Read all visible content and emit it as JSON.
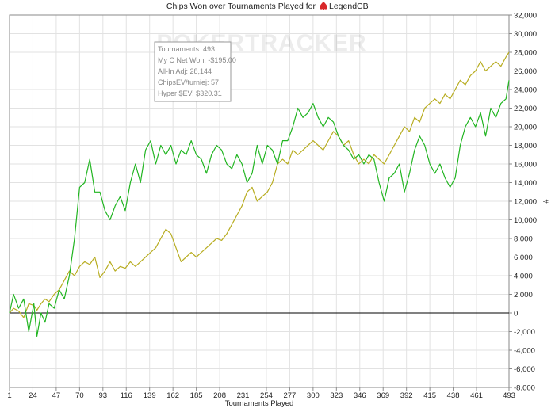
{
  "title_prefix": "Chips Won over Tournaments Played for",
  "title_player": "LegendCB",
  "watermark": "POKERTRACKER",
  "colors": {
    "green": "#21b521",
    "olive": "#b8ad22",
    "grid": "#e2e2e2",
    "frame": "#8a8a8a",
    "zero": "#000000",
    "logo": "#d8282a"
  },
  "tooltip": {
    "lines": [
      "Tournaments: 493",
      "My C Net Won: -$195.00",
      "All-In Adj: 28,144",
      "ChipsEV/turniej: 57",
      "Hyper $EV: $320.31"
    ]
  },
  "chart_data": {
    "type": "line",
    "xlabel": "Tournaments Played",
    "ylabel": "#",
    "xlim": [
      1,
      493
    ],
    "ylim": [
      -8000,
      32000
    ],
    "x_ticks": [
      1,
      24,
      47,
      70,
      93,
      116,
      139,
      162,
      185,
      208,
      231,
      254,
      277,
      300,
      323,
      346,
      369,
      392,
      415,
      438,
      461,
      493
    ],
    "y_ticks": [
      -8000,
      -6000,
      -4000,
      -2000,
      0,
      2000,
      4000,
      6000,
      8000,
      10000,
      12000,
      14000,
      16000,
      18000,
      20000,
      22000,
      24000,
      26000,
      28000,
      30000,
      32000
    ],
    "y_tick_labels": [
      "-8,000",
      "-6,000",
      "-4,000",
      "-2,000",
      "0",
      "2,000",
      "4,000",
      "6,000",
      "8,000",
      "10,000",
      "12,000",
      "14,000",
      "16,000",
      "18,000",
      "20,000",
      "22,000",
      "24,000",
      "26,000",
      "28,000",
      "30,000",
      "32,000"
    ],
    "grid": true,
    "series": [
      {
        "color": "#21b521",
        "x": [
          1,
          5,
          10,
          15,
          20,
          25,
          28,
          32,
          36,
          40,
          45,
          50,
          55,
          60,
          65,
          70,
          75,
          80,
          85,
          90,
          95,
          100,
          105,
          110,
          115,
          120,
          125,
          130,
          135,
          140,
          145,
          150,
          155,
          160,
          165,
          170,
          175,
          180,
          185,
          190,
          195,
          200,
          205,
          210,
          215,
          220,
          225,
          230,
          235,
          240,
          245,
          250,
          255,
          260,
          265,
          270,
          275,
          280,
          285,
          290,
          295,
          300,
          305,
          310,
          315,
          320,
          325,
          330,
          335,
          340,
          345,
          350,
          355,
          360,
          365,
          370,
          375,
          380,
          385,
          390,
          395,
          400,
          405,
          410,
          415,
          420,
          425,
          430,
          435,
          440,
          445,
          450,
          455,
          460,
          465,
          470,
          475,
          480,
          485,
          490,
          493
        ],
        "y": [
          0,
          2000,
          500,
          1500,
          -2000,
          1000,
          -2500,
          0,
          -1000,
          1000,
          500,
          2500,
          1500,
          4000,
          8000,
          13500,
          14000,
          16500,
          13000,
          13000,
          11000,
          10000,
          11500,
          12500,
          11000,
          14000,
          16000,
          14000,
          17500,
          18500,
          16000,
          18000,
          17000,
          18000,
          16000,
          17500,
          17000,
          18500,
          17000,
          16500,
          15000,
          17000,
          18000,
          17500,
          16000,
          15500,
          17000,
          16000,
          14000,
          15000,
          18000,
          16000,
          18000,
          17500,
          16000,
          18500,
          18500,
          20000,
          22000,
          21000,
          21500,
          22500,
          21000,
          20000,
          21000,
          20500,
          19000,
          18000,
          17500,
          16500,
          17000,
          16000,
          17000,
          16500,
          14000,
          12000,
          14500,
          15000,
          16000,
          13000,
          15000,
          17500,
          19000,
          18000,
          16000,
          15000,
          16000,
          14500,
          13500,
          14500,
          18000,
          20000,
          21000,
          20000,
          21500,
          19000,
          22000,
          21000,
          22500,
          23000,
          25000
        ]
      },
      {
        "color": "#b8ad22",
        "x": [
          1,
          5,
          10,
          15,
          20,
          25,
          28,
          32,
          36,
          40,
          45,
          50,
          55,
          60,
          65,
          70,
          75,
          80,
          85,
          90,
          95,
          100,
          105,
          110,
          115,
          120,
          125,
          130,
          135,
          140,
          145,
          150,
          155,
          160,
          165,
          170,
          175,
          180,
          185,
          190,
          195,
          200,
          205,
          210,
          215,
          220,
          225,
          230,
          235,
          240,
          245,
          250,
          255,
          260,
          265,
          270,
          275,
          280,
          285,
          290,
          295,
          300,
          305,
          310,
          315,
          320,
          325,
          330,
          335,
          340,
          345,
          350,
          355,
          360,
          365,
          370,
          375,
          380,
          385,
          390,
          395,
          400,
          405,
          410,
          415,
          420,
          425,
          430,
          435,
          440,
          445,
          450,
          455,
          460,
          465,
          470,
          475,
          480,
          485,
          490,
          493
        ],
        "y": [
          0,
          500,
          200,
          -500,
          1000,
          800,
          300,
          1000,
          1500,
          1200,
          2000,
          2500,
          3500,
          4500,
          4000,
          5000,
          5500,
          5200,
          6000,
          3800,
          4500,
          5500,
          4500,
          5000,
          4800,
          5500,
          5000,
          5500,
          6000,
          6500,
          7000,
          8000,
          9000,
          8500,
          7000,
          5500,
          6000,
          6500,
          6000,
          6500,
          7000,
          7500,
          8000,
          7800,
          8500,
          9500,
          10500,
          11500,
          13000,
          13500,
          12000,
          12500,
          13000,
          14000,
          16000,
          16500,
          16000,
          17500,
          17000,
          17500,
          18000,
          18500,
          18000,
          17500,
          18500,
          19500,
          19000,
          18000,
          18500,
          17000,
          16000,
          16500,
          16000,
          17000,
          16500,
          16000,
          17000,
          18000,
          19000,
          20000,
          19500,
          21000,
          20500,
          22000,
          22500,
          23000,
          22500,
          23500,
          23000,
          24000,
          25000,
          24500,
          25500,
          26000,
          27000,
          26000,
          26500,
          27000,
          26500,
          27500,
          28000
        ]
      }
    ]
  }
}
